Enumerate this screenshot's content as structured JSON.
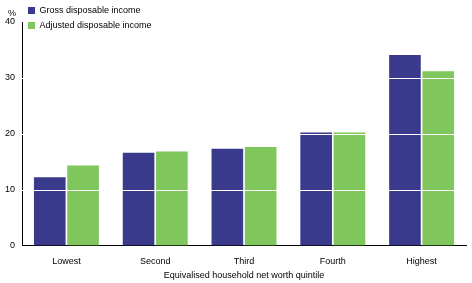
{
  "chart_data": {
    "type": "bar",
    "x_label": "Equivalised household net worth quintile",
    "y_label": "%",
    "categories": [
      "Lowest",
      "Second",
      "Third",
      "Fourth",
      "Highest"
    ],
    "series": [
      {
        "name": "Gross disposable income",
        "color": "#3a3a8c",
        "values": [
          12.2,
          16.6,
          17.3,
          20.2,
          34.1
        ]
      },
      {
        "name": "Adjusted disposable income",
        "color": "#7fc65c",
        "values": [
          14.3,
          16.8,
          17.6,
          20.2,
          31.2
        ]
      }
    ],
    "ylim": [
      0,
      40
    ],
    "yticks": [
      0,
      10,
      20,
      30,
      40
    ],
    "grid": true,
    "legend": "upper left"
  }
}
